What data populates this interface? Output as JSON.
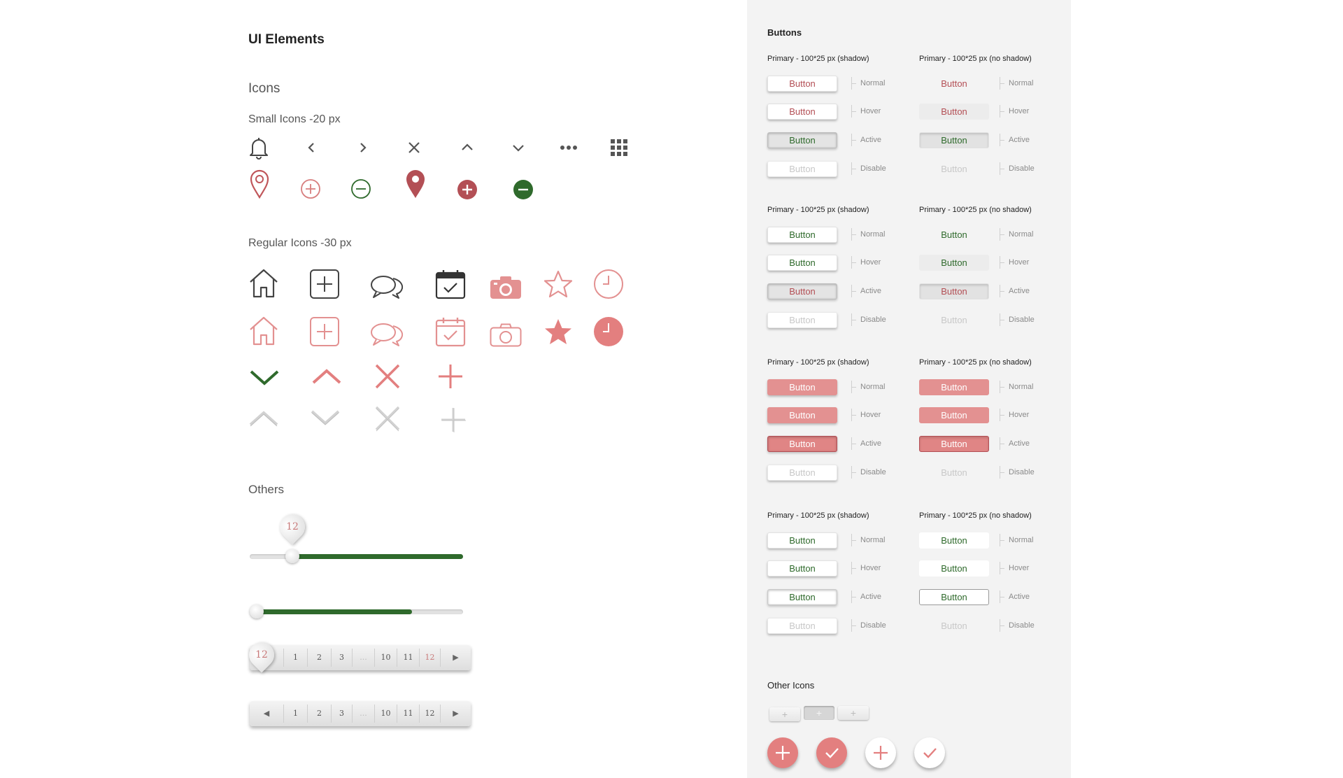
{
  "page_title": "UI Elements",
  "icons": {
    "heading": "Icons",
    "small_heading": "Small Icons -20 px",
    "regular_heading": "Regular Icons -30 px"
  },
  "others": {
    "heading": "Others",
    "slider_value": "12",
    "slider1_fraction": 0.2,
    "slider2_fraction": 0.76,
    "pager1": {
      "current": "12",
      "pages": [
        "1",
        "2",
        "3",
        "...",
        "10",
        "11",
        "12"
      ],
      "next": "▶"
    },
    "pager2": {
      "prev": "◀",
      "pages": [
        "1",
        "2",
        "3",
        "...",
        "10",
        "11",
        "12"
      ],
      "next": "▶"
    }
  },
  "buttons_panel": {
    "title": "Buttons",
    "groups": [
      {
        "left_head": "Primary - 100*25 px (shadow)",
        "right_head": "Primary - 100*25 px (no shadow)"
      },
      {
        "left_head": "Primary - 100*25 px (shadow)",
        "right_head": "Primary - 100*25 px (no shadow)"
      },
      {
        "left_head": "Primary - 100*25 px (shadow)",
        "right_head": "Primary - 100*25 px (no shadow)"
      },
      {
        "left_head": "Primary - 100*25 px (shadow)",
        "right_head": "Primary - 100*25 px (no shadow)"
      }
    ],
    "button_label": "Button",
    "states": [
      "Normal",
      "Hover",
      "Active",
      "Disable"
    ],
    "other_icons_title": "Other Icons"
  },
  "colors": {
    "accent_red": "#c0565a",
    "accent_pink": "#e39191",
    "accent_green": "#2f6a2c",
    "panel_bg": "#f3f3f3"
  }
}
